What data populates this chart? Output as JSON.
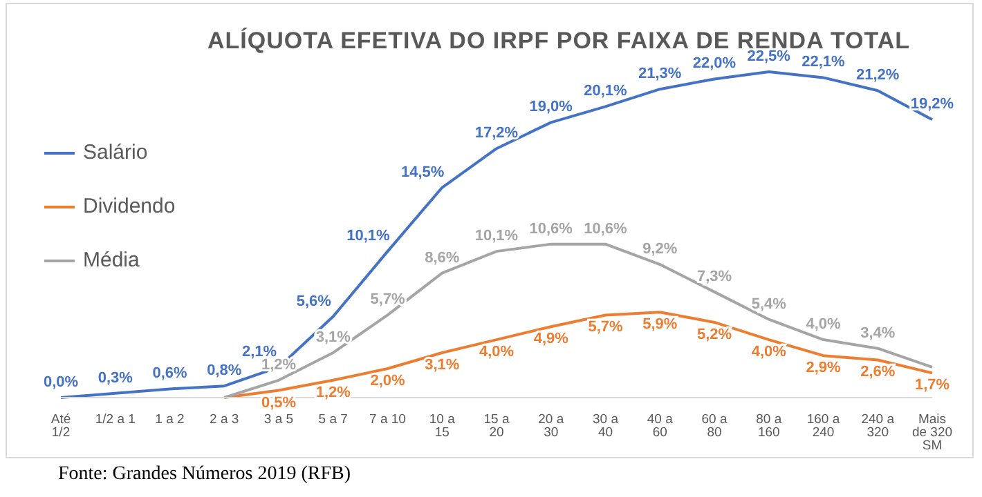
{
  "chart_data": {
    "type": "line",
    "title": "ALÍQUOTA EFETIVA DO IRPF POR FAIXA DE RENDA TOTAL",
    "categories": [
      "Até 1/2",
      "1/2 a 1",
      "1 a 2",
      "2 a 3",
      "3 a 5",
      "5 a 7",
      "7 a 10",
      "10 a 15",
      "15 a 20",
      "20 a 30",
      "30 a 40",
      "40 a 60",
      "60 a 80",
      "80 a 160",
      "160 a 240",
      "240 a 320",
      "Mais de 320 SM"
    ],
    "series": [
      {
        "name": "Salário",
        "color": "#4472c4",
        "values": [
          0.0,
          0.3,
          0.6,
          0.8,
          2.1,
          5.6,
          10.1,
          14.5,
          17.2,
          19.0,
          20.1,
          21.3,
          22.0,
          22.5,
          22.1,
          21.2,
          19.2
        ],
        "value_labels": [
          "0,0%",
          "0,3%",
          "0,6%",
          "0,8%",
          "2,1%",
          "5,6%",
          "10,1%",
          "14,5%",
          "17,2%",
          "19,0%",
          "20,1%",
          "21,3%",
          "22,0%",
          "22,5%",
          "22,1%",
          "21,2%",
          "19,2%"
        ]
      },
      {
        "name": "Dividendo",
        "color": "#ed7d31",
        "values": [
          null,
          null,
          null,
          0.0,
          0.5,
          1.2,
          2.0,
          3.1,
          4.0,
          4.9,
          5.7,
          5.9,
          5.2,
          4.0,
          2.9,
          2.6,
          1.7
        ],
        "value_labels": [
          null,
          null,
          null,
          null,
          "0,5%",
          "1,2%",
          "2,0%",
          "3,1%",
          "4,0%",
          "4,9%",
          "5,7%",
          "5,9%",
          "5,2%",
          "4,0%",
          "2,9%",
          "2,6%",
          "1,7%"
        ]
      },
      {
        "name": "Média",
        "color": "#a5a5a5",
        "values": [
          null,
          null,
          null,
          0.0,
          1.2,
          3.1,
          5.7,
          8.6,
          10.1,
          10.6,
          10.6,
          9.2,
          7.3,
          5.4,
          4.0,
          3.4,
          2.1
        ],
        "value_labels": [
          null,
          null,
          null,
          null,
          "1,2%",
          "3,1%",
          "5,7%",
          "8,6%",
          "10,1%",
          "10,6%",
          "10,6%",
          "9,2%",
          "7,3%",
          "5,4%",
          "4,0%",
          "3,4%",
          null
        ]
      }
    ],
    "legend": "left",
    "marker": "none",
    "line_style": "solid",
    "annotations": [
      "Fonte: Grandes Números 2019 (RFB)"
    ]
  }
}
